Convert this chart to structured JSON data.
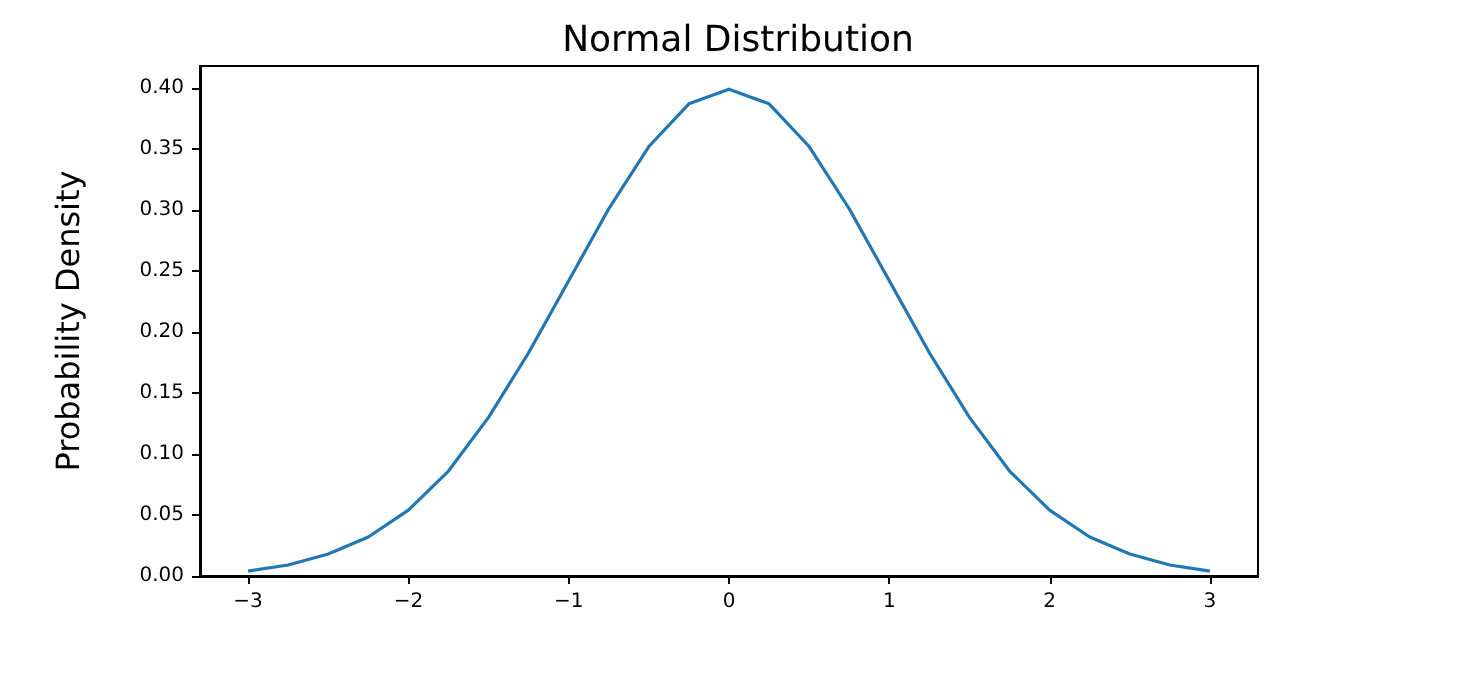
{
  "chart_data": {
    "type": "line",
    "title": "Normal Distribution",
    "ylabel": "Probability Density",
    "x": [
      -3,
      -2.75,
      -2.5,
      -2.25,
      -2,
      -1.75,
      -1.5,
      -1.25,
      -1,
      -0.75,
      -0.5,
      -0.25,
      0,
      0.25,
      0.5,
      0.75,
      1,
      1.25,
      1.5,
      1.75,
      2,
      2.25,
      2.5,
      2.75,
      3
    ],
    "series": [
      {
        "color": "#1f77b4",
        "values": [
          0.004,
          0.009,
          0.018,
          0.032,
          0.054,
          0.086,
          0.13,
          0.183,
          0.242,
          0.301,
          0.352,
          0.387,
          0.399,
          0.387,
          0.352,
          0.301,
          0.242,
          0.183,
          0.13,
          0.086,
          0.054,
          0.032,
          0.018,
          0.009,
          0.004
        ]
      }
    ],
    "xlim": [
      -3.3,
      3.3
    ],
    "ylim": [
      0,
      0.418
    ],
    "xticks": [
      {
        "value": -3,
        "label": "−3"
      },
      {
        "value": -2,
        "label": "−2"
      },
      {
        "value": -1,
        "label": "−1"
      },
      0,
      1,
      2,
      3
    ],
    "yticks": [
      {
        "value": 0,
        "label": "0.00"
      },
      {
        "value": 0.05,
        "label": "0.05"
      },
      {
        "value": 0.1,
        "label": "0.10"
      },
      {
        "value": 0.15,
        "label": "0.15"
      },
      {
        "value": 0.2,
        "label": "0.20"
      },
      {
        "value": 0.25,
        "label": "0.25"
      },
      {
        "value": 0.3,
        "label": "0.30"
      },
      {
        "value": 0.35,
        "label": "0.35"
      },
      {
        "value": 0.4,
        "label": "0.40"
      }
    ],
    "grid": false,
    "marker": "none",
    "line_style": "solid"
  }
}
